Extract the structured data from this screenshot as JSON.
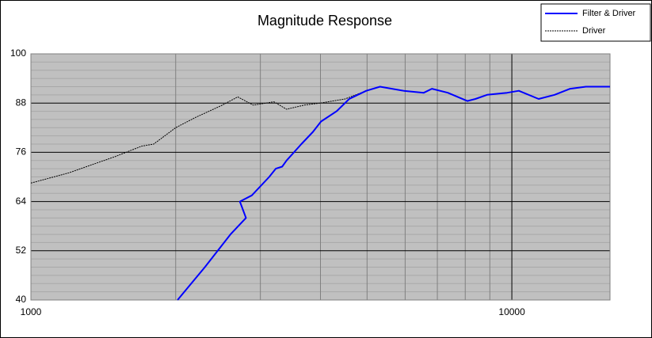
{
  "chart_data": {
    "type": "line",
    "title": "Magnitude Response",
    "xscale": "log",
    "xlim": [
      1000,
      16000
    ],
    "xticks": [
      1000,
      10000
    ],
    "xminorticks": [
      2000,
      3000,
      4000,
      5000,
      6000,
      7000,
      8000,
      9000
    ],
    "ylim": [
      40,
      100
    ],
    "yticks": [
      40,
      52,
      64,
      76,
      88,
      100
    ],
    "yminorticks": [
      42,
      44,
      46,
      48,
      50,
      54,
      56,
      58,
      60,
      62,
      66,
      68,
      70,
      72,
      74,
      78,
      80,
      82,
      84,
      86,
      90,
      92,
      94,
      96,
      98
    ],
    "grid": true,
    "legend": "top-right",
    "series": [
      {
        "name": "Filter & Driver",
        "color": "#0000ff",
        "style": "solid",
        "x": [
          2018,
          2300,
          2600,
          2800,
          2720,
          2880,
          3130,
          3230,
          3330,
          3400,
          3650,
          3860,
          4010,
          4320,
          4590,
          4980,
          5320,
          5960,
          6560,
          6820,
          7360,
          8080,
          8400,
          8880,
          9780,
          10340,
          11370,
          12270,
          13220,
          14260,
          16000
        ],
        "values": [
          40,
          48,
          56,
          60,
          64,
          65.5,
          70,
          72,
          72.5,
          74,
          78,
          81,
          83.5,
          86,
          89,
          91,
          92,
          91,
          90.5,
          91.5,
          90.5,
          88.5,
          89,
          90,
          90.5,
          91,
          89,
          90,
          91.5,
          92,
          92
        ]
      },
      {
        "name": "Driver",
        "color": "#000000",
        "style": "dashed",
        "x": [
          1000,
          1200,
          1500,
          1700,
          1800,
          2000,
          2200,
          2500,
          2692,
          2900,
          3200,
          3400,
          3700,
          4000,
          4500,
          4980,
          5320,
          5960,
          6560,
          6820,
          7360,
          8080,
          8400,
          8880,
          9780,
          10340,
          11370,
          12270,
          13220,
          14260,
          16000
        ],
        "values": [
          68.5,
          71,
          75,
          77.5,
          78,
          82,
          84.5,
          87.5,
          89.5,
          87.5,
          88.3,
          86.5,
          87.5,
          88,
          89,
          91,
          92,
          91,
          90.5,
          91.5,
          90.5,
          88.5,
          89,
          90,
          90.5,
          91,
          89,
          90,
          91.5,
          92,
          92
        ]
      }
    ]
  }
}
